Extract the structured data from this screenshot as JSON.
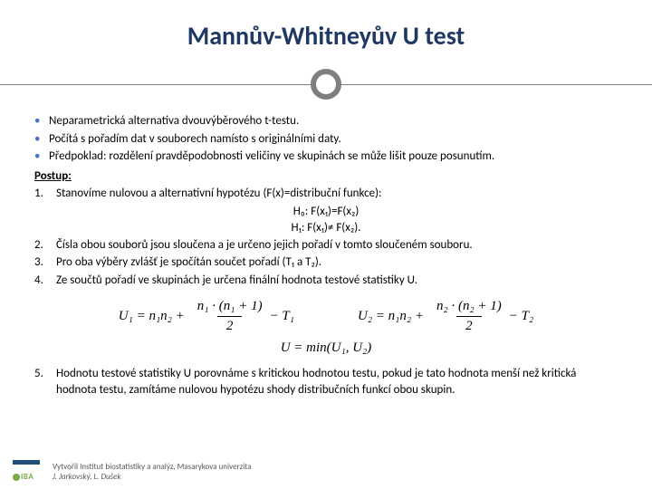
{
  "title": "Mannův-Whitneyův U test",
  "accent_color": "#4472c4",
  "title_color": "#1f3864",
  "orb_border_color": "#7f7f7f",
  "bullets": [
    "Neparametrická alternativa dvouvýběrového t-testu.",
    "Počítá s pořadím dat v souborech namísto s originálními daty.",
    "Předpoklad: rozdělení pravděpodobnosti veličiny ve skupinách se může lišit pouze posunutím."
  ],
  "postup_label": "Postup:",
  "steps": {
    "s1": "Stanovíme nulovou a alternativní hypotézu (F(x)=distribuční funkce):",
    "h0": "H₀: F(x₁)=F(x₂)",
    "h1": "H₁: F(x₁)≠ F(x₂).",
    "s2": "Čísla obou souborů jsou sloučena a je určeno jejich pořadí v tomto sloučeném souboru.",
    "s3": "Pro oba výběry zvlášť je spočítán součet pořadí (T₁ a T₂).",
    "s4": "Ze součtů pořadí ve skupinách je určena finální hodnota testové statistiky U.",
    "s5": "Hodnotu testové statistiky U porovnáme s kritickou hodnotou testu, pokud je tato hodnota menší než kritická hodnota testu, zamítáme nulovou hypotézu shody distribučních funkcí obou skupin."
  },
  "formula1": {
    "lhs": "U₁ = n₁n₂ +",
    "num": "n₁ · (n₁ + 1)",
    "den": "2",
    "tail": "− T₁"
  },
  "formula2": {
    "lhs": "U₂ = n₁n₂ +",
    "num": "n₂ · (n₂ + 1)",
    "den": "2",
    "tail": "− T₂"
  },
  "formula3": "U = min(U₁, U₂)",
  "footer": {
    "l1": "Vytvořil Institut biostatistiky a analýz, Masarykova univerzita",
    "l2": "J. Jarkovský, L. Dušek"
  },
  "logo_text": "IBA"
}
